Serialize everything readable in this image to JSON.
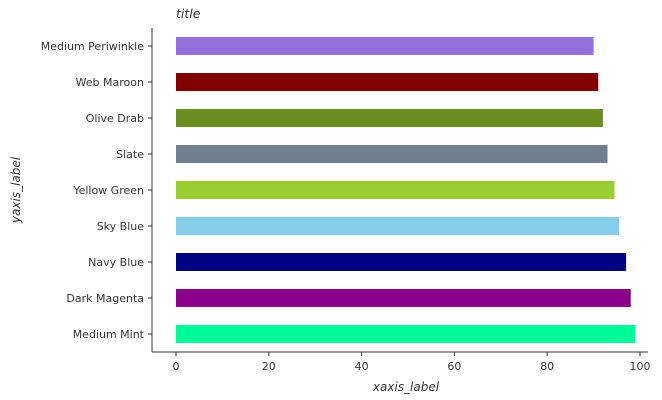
{
  "chart_data": {
    "type": "bar",
    "orientation": "horizontal",
    "title": "title",
    "xlabel": "xaxis_label",
    "ylabel": "yaxis_label",
    "xlim": [
      -3,
      102
    ],
    "xticks": [
      0,
      20,
      40,
      60,
      80,
      100
    ],
    "grid": false,
    "categories": [
      "Medium Mint",
      "Dark Magenta",
      "Navy Blue",
      "Sky Blue",
      "Yellow Green",
      "Slate",
      "Olive Drab",
      "Web Maroon",
      "Medium Periwinkle"
    ],
    "values": [
      99,
      98,
      97,
      95.5,
      94.5,
      93,
      92,
      91,
      90
    ],
    "colors": [
      "#00fa9a",
      "#8b008b",
      "#000080",
      "#87ceeb",
      "#9acd32",
      "#708090",
      "#6b8e23",
      "#800000",
      "#9370db"
    ]
  }
}
